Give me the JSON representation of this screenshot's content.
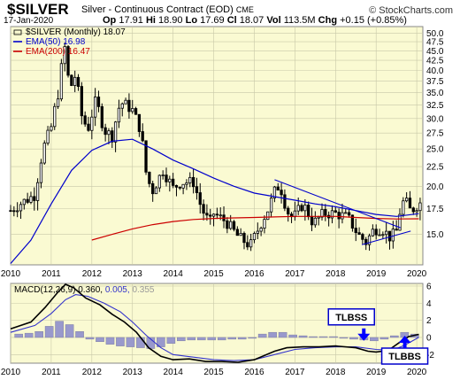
{
  "header": {
    "symbol": "$SILVER",
    "description": "Silver - Continuous Contract (EOD)",
    "exchange": "CME",
    "date": "17-Jan-2020",
    "open_label": "Op",
    "open": "17.91",
    "high_label": "Hi",
    "high": "18.90",
    "low_label": "Lo",
    "low": "17.69",
    "close_label": "Cl",
    "close": "18.07",
    "volume_label": "Vol",
    "volume": "113.5M",
    "change_label": "Chg",
    "change": "+0.15 (+0.85%)",
    "copyright": "© StockCharts.com"
  },
  "colors": {
    "panel_bg": "#fafad2",
    "candle": "#000000",
    "ema50": "#0000cc",
    "ema200": "#cc0000",
    "macd": "#000000",
    "signal": "#3333cc",
    "histogram": "#9999cc",
    "trendline": "#0000cc",
    "annotation_box": "#0000cc",
    "annotation_arrow": "#0000ff"
  },
  "chart_data": [
    {
      "type": "candlestick",
      "legend": [
        {
          "name": "$SILVER (Monthly) 18.07",
          "color": "#000000"
        },
        {
          "name": "EMA(50) 16.98",
          "color": "#0000cc"
        },
        {
          "name": "EMA(200) 16.47",
          "color": "#cc0000"
        }
      ],
      "y_scale": "log",
      "ylim": [
        12.5,
        52
      ],
      "y_ticks": [
        15.0,
        17.5,
        20.0,
        22.5,
        25.0,
        27.5,
        30.0,
        32.5,
        35.0,
        37.5,
        40.0,
        42.5,
        45.0,
        47.5,
        50.0
      ],
      "y_tick_labels": [
        "15.0",
        "17.5",
        "20.0",
        "22.5",
        "25.0",
        "27.5",
        "30.0",
        "32.5",
        "35.0",
        "37.5",
        "40.0",
        "42.5",
        "45.0",
        "47.5",
        "50.0"
      ],
      "xlim": [
        2010,
        2020.15
      ],
      "x_ticks": [
        2010,
        2011,
        2012,
        2013,
        2014,
        2015,
        2016,
        2017,
        2018,
        2019,
        2020
      ],
      "x_tick_labels": [
        "2010",
        "2011",
        "2012",
        "2013",
        "2014",
        "2015",
        "2016",
        "2017",
        "2018",
        "2019",
        "2020"
      ],
      "grid": true,
      "price_path": [
        [
          2010.0,
          17.3
        ],
        [
          2010.3,
          18.2
        ],
        [
          2010.6,
          19.0
        ],
        [
          2010.8,
          25.0
        ],
        [
          2011.0,
          28.5
        ],
        [
          2011.2,
          36.0
        ],
        [
          2011.32,
          47.0
        ],
        [
          2011.45,
          35.5
        ],
        [
          2011.6,
          39.0
        ],
        [
          2011.75,
          30.5
        ],
        [
          2011.9,
          28.0
        ],
        [
          2012.1,
          33.5
        ],
        [
          2012.3,
          28.0
        ],
        [
          2012.5,
          27.0
        ],
        [
          2012.7,
          33.0
        ],
        [
          2012.85,
          32.5
        ],
        [
          2013.0,
          31.5
        ],
        [
          2013.2,
          28.0
        ],
        [
          2013.35,
          21.0
        ],
        [
          2013.5,
          19.5
        ],
        [
          2013.75,
          22.0
        ],
        [
          2014.0,
          19.8
        ],
        [
          2014.2,
          20.5
        ],
        [
          2014.5,
          20.5
        ],
        [
          2014.7,
          17.5
        ],
        [
          2014.9,
          16.0
        ],
        [
          2015.0,
          17.0
        ],
        [
          2015.3,
          16.2
        ],
        [
          2015.6,
          14.8
        ],
        [
          2015.9,
          14.0
        ],
        [
          2016.1,
          15.5
        ],
        [
          2016.35,
          17.5
        ],
        [
          2016.55,
          20.0
        ],
        [
          2016.65,
          19.8
        ],
        [
          2016.8,
          17.3
        ],
        [
          2016.95,
          16.5
        ],
        [
          2017.2,
          18.0
        ],
        [
          2017.45,
          16.0
        ],
        [
          2017.7,
          17.0
        ],
        [
          2018.0,
          17.0
        ],
        [
          2018.3,
          16.6
        ],
        [
          2018.55,
          15.0
        ],
        [
          2018.75,
          14.3
        ],
        [
          2018.95,
          15.5
        ],
        [
          2019.15,
          15.5
        ],
        [
          2019.35,
          14.7
        ],
        [
          2019.5,
          15.3
        ],
        [
          2019.6,
          17.5
        ],
        [
          2019.7,
          18.5
        ],
        [
          2019.85,
          17.2
        ],
        [
          2020.05,
          18.07
        ]
      ],
      "ema50_path": [
        [
          2010.0,
          12.6
        ],
        [
          2010.5,
          14.5
        ],
        [
          2011.0,
          18.0
        ],
        [
          2011.5,
          22.0
        ],
        [
          2012.0,
          24.8
        ],
        [
          2012.5,
          26.2
        ],
        [
          2013.0,
          26.5
        ],
        [
          2013.5,
          25.0
        ],
        [
          2014.0,
          23.4
        ],
        [
          2014.5,
          22.2
        ],
        [
          2015.0,
          21.0
        ],
        [
          2015.5,
          20.0
        ],
        [
          2016.0,
          19.2
        ],
        [
          2016.5,
          18.8
        ],
        [
          2017.0,
          18.4
        ],
        [
          2017.5,
          18.0
        ],
        [
          2018.0,
          17.7
        ],
        [
          2018.5,
          17.3
        ],
        [
          2019.0,
          16.9
        ],
        [
          2019.5,
          16.7
        ],
        [
          2020.05,
          16.98
        ]
      ],
      "ema200_path": [
        [
          2012.0,
          14.5
        ],
        [
          2012.5,
          15.0
        ],
        [
          2013.0,
          15.5
        ],
        [
          2013.5,
          15.9
        ],
        [
          2014.0,
          16.2
        ],
        [
          2014.5,
          16.4
        ],
        [
          2015.0,
          16.5
        ],
        [
          2015.5,
          16.55
        ],
        [
          2016.0,
          16.6
        ],
        [
          2016.5,
          16.65
        ],
        [
          2017.0,
          16.7
        ],
        [
          2017.5,
          16.7
        ],
        [
          2018.0,
          16.7
        ],
        [
          2018.5,
          16.6
        ],
        [
          2019.0,
          16.5
        ],
        [
          2019.5,
          16.45
        ],
        [
          2020.05,
          16.47
        ]
      ],
      "trendlines": [
        {
          "from": [
            2016.5,
            20.8
          ],
          "to": [
            2019.6,
            15.6
          ]
        },
        {
          "from": [
            2018.65,
            14.1
          ],
          "to": [
            2019.85,
            15.3
          ]
        }
      ]
    },
    {
      "type": "line",
      "title": "MACD(12,26,9) 0.360, 0.005, 0.355",
      "title_parts": {
        "label": "MACD(12,26,9)",
        "macd": "0.360",
        "signal": "0.005",
        "hist": "0.355"
      },
      "ylim": [
        -3,
        6.3
      ],
      "y_ticks": [
        -2,
        0,
        2,
        4,
        6
      ],
      "y_tick_labels": [
        "-2",
        "0",
        "2",
        "4",
        "6"
      ],
      "macd": [
        [
          2010.0,
          1.0
        ],
        [
          2010.5,
          1.8
        ],
        [
          2010.85,
          3.5
        ],
        [
          2011.15,
          5.2
        ],
        [
          2011.35,
          6.2
        ],
        [
          2011.55,
          5.8
        ],
        [
          2011.85,
          4.6
        ],
        [
          2012.2,
          3.8
        ],
        [
          2012.5,
          2.7
        ],
        [
          2012.8,
          1.8
        ],
        [
          2013.1,
          0.6
        ],
        [
          2013.4,
          -1.2
        ],
        [
          2013.7,
          -2.2
        ],
        [
          2014.0,
          -2.6
        ],
        [
          2014.4,
          -2.5
        ],
        [
          2014.8,
          -2.8
        ],
        [
          2015.2,
          -2.8
        ],
        [
          2015.6,
          -2.9
        ],
        [
          2016.0,
          -2.6
        ],
        [
          2016.5,
          -1.6
        ],
        [
          2016.8,
          -1.2
        ],
        [
          2017.2,
          -1.1
        ],
        [
          2017.6,
          -1.1
        ],
        [
          2018.0,
          -1.0
        ],
        [
          2018.5,
          -1.2
        ],
        [
          2018.8,
          -1.6
        ],
        [
          2019.0,
          -1.7
        ],
        [
          2019.3,
          -1.5
        ],
        [
          2019.6,
          -0.5
        ],
        [
          2019.8,
          0.1
        ],
        [
          2020.05,
          0.36
        ]
      ],
      "signal": [
        [
          2010.0,
          0.6
        ],
        [
          2010.6,
          1.4
        ],
        [
          2011.0,
          2.8
        ],
        [
          2011.35,
          4.4
        ],
        [
          2011.6,
          5.0
        ],
        [
          2011.9,
          4.8
        ],
        [
          2012.3,
          4.0
        ],
        [
          2012.7,
          3.0
        ],
        [
          2013.0,
          1.8
        ],
        [
          2013.35,
          0.2
        ],
        [
          2013.7,
          -1.2
        ],
        [
          2014.0,
          -2.0
        ],
        [
          2014.5,
          -2.3
        ],
        [
          2015.0,
          -2.6
        ],
        [
          2015.5,
          -2.7
        ],
        [
          2016.0,
          -2.6
        ],
        [
          2016.5,
          -2.0
        ],
        [
          2017.0,
          -1.4
        ],
        [
          2017.5,
          -1.2
        ],
        [
          2018.0,
          -1.1
        ],
        [
          2018.5,
          -1.1
        ],
        [
          2019.0,
          -1.4
        ],
        [
          2019.4,
          -1.5
        ],
        [
          2019.7,
          -0.9
        ],
        [
          2020.05,
          0.005
        ]
      ],
      "histogram": [
        [
          2010.2,
          0.4
        ],
        [
          2010.45,
          0.5
        ],
        [
          2010.7,
          0.7
        ],
        [
          2010.95,
          1.3
        ],
        [
          2011.2,
          1.9
        ],
        [
          2011.45,
          1.5
        ],
        [
          2011.7,
          0.7
        ],
        [
          2011.95,
          -0.2
        ],
        [
          2012.2,
          -0.5
        ],
        [
          2012.45,
          -0.8
        ],
        [
          2012.7,
          -1.0
        ],
        [
          2012.95,
          -1.1
        ],
        [
          2013.2,
          -1.2
        ],
        [
          2013.45,
          -1.3
        ],
        [
          2013.7,
          -1.1
        ],
        [
          2013.95,
          -0.7
        ],
        [
          2014.2,
          -0.4
        ],
        [
          2014.45,
          -0.3
        ],
        [
          2014.7,
          -0.3
        ],
        [
          2014.95,
          -0.3
        ],
        [
          2015.2,
          -0.3
        ],
        [
          2015.45,
          -0.2
        ],
        [
          2015.7,
          -0.2
        ],
        [
          2015.95,
          -0.1
        ],
        [
          2016.2,
          0.4
        ],
        [
          2016.45,
          0.6
        ],
        [
          2016.7,
          0.6
        ],
        [
          2016.95,
          0.3
        ],
        [
          2017.2,
          0.2
        ],
        [
          2017.45,
          0.1
        ],
        [
          2017.7,
          0.1
        ],
        [
          2017.95,
          0.1
        ],
        [
          2018.2,
          -0.1
        ],
        [
          2018.45,
          -0.2
        ],
        [
          2018.7,
          -0.3
        ],
        [
          2018.95,
          -0.4
        ],
        [
          2019.2,
          -0.2
        ],
        [
          2019.45,
          0.2
        ],
        [
          2019.7,
          0.6
        ],
        [
          2019.95,
          0.4
        ]
      ],
      "x_tick_labels": [
        "2010",
        "2011",
        "2012",
        "2013",
        "2014",
        "2015",
        "2016",
        "2017",
        "2018",
        "2019",
        "2020"
      ],
      "annotations": [
        {
          "text": "TLBSS",
          "at": [
            2018.5,
            -0.6
          ],
          "direction": "down"
        },
        {
          "text": "TLBBS",
          "at": [
            2019.4,
            -2.9
          ],
          "direction": "up"
        }
      ]
    }
  ]
}
